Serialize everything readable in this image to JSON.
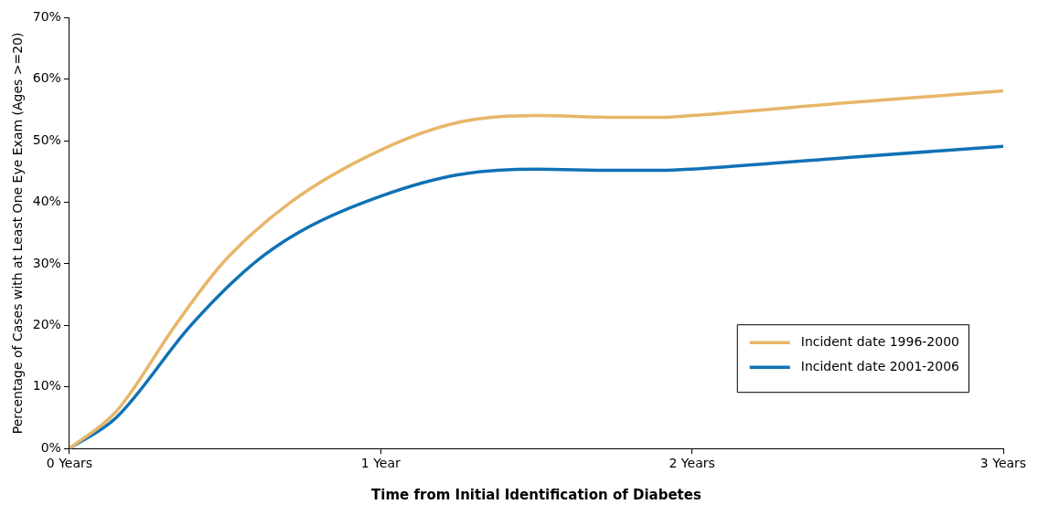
{
  "chart_data": {
    "type": "line",
    "xlabel": "Time from Initial Identification of Diabetes",
    "ylabel": "Percentage of Cases with at Least One Eye Exam (Ages >=20)",
    "xlim": [
      0,
      3
    ],
    "xticks": [
      {
        "value": 0,
        "label": "0 Years"
      },
      {
        "value": 1,
        "label": "1 Year"
      },
      {
        "value": 2,
        "label": "2 Years"
      },
      {
        "value": 3,
        "label": "3 Years"
      }
    ],
    "ylim": [
      0,
      70
    ],
    "yticks": [
      {
        "value": 0,
        "label": "0%"
      },
      {
        "value": 10,
        "label": "10%"
      },
      {
        "value": 20,
        "label": "20%"
      },
      {
        "value": 30,
        "label": "30%"
      },
      {
        "value": 40,
        "label": "40%"
      },
      {
        "value": 50,
        "label": "50%"
      },
      {
        "value": 60,
        "label": "60%"
      },
      {
        "value": 70,
        "label": "70%"
      }
    ],
    "grid": false,
    "legend": "bottom right",
    "marker": "none",
    "line_style": "solid",
    "series": [
      {
        "name": "Incident date 1996-2000",
        "color": "#e8b669",
        "x": [
          0,
          0.15,
          0.34,
          0.49,
          0.71,
          1,
          1.25,
          1.5,
          1.75,
          1.9,
          2,
          2.5,
          3
        ],
        "values": [
          0,
          6,
          20,
          30,
          40,
          48.5,
          53,
          54.1,
          53.8,
          53.8,
          54.1,
          56.2,
          58.1
        ]
      },
      {
        "name": "Incident date 2001-2006",
        "color": "#0f72b5",
        "x": [
          0,
          0.15,
          0.39,
          0.59,
          0.75,
          1,
          1.25,
          1.5,
          1.75,
          1.9,
          2,
          2.5,
          3
        ],
        "values": [
          0,
          5,
          20,
          30,
          35.5,
          41,
          44.5,
          45.4,
          45.2,
          45.2,
          45.4,
          47.3,
          49.1
        ]
      }
    ]
  }
}
